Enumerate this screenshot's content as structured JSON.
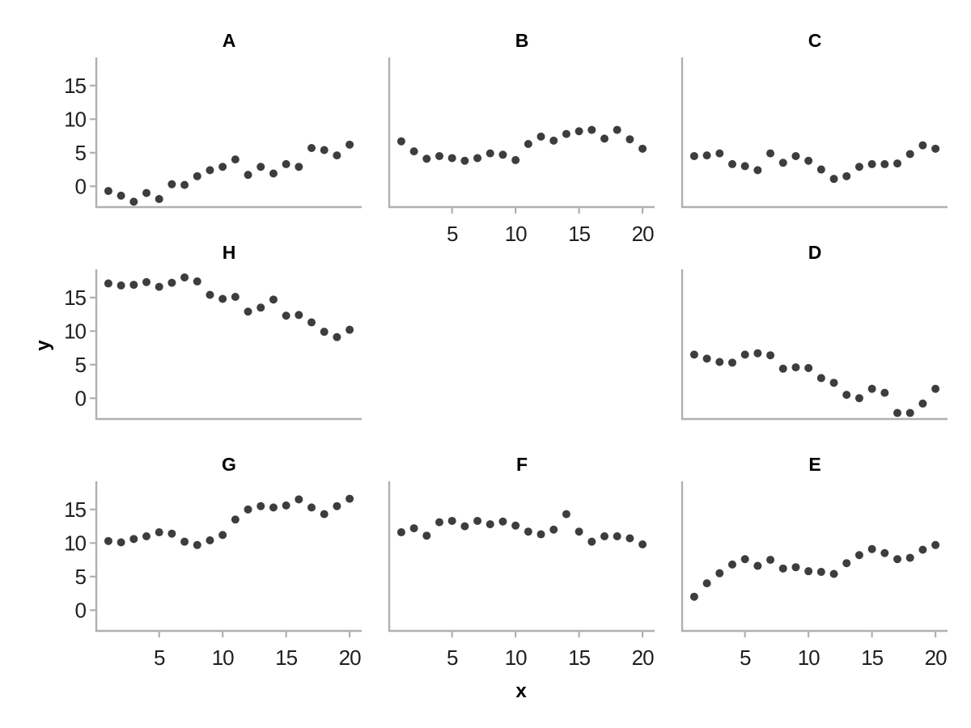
{
  "chart_data": {
    "type": "scatter",
    "title": "",
    "xlabel": "x",
    "ylabel": "y",
    "grid": "off",
    "legend": "none",
    "x_ticks": [
      5,
      10,
      15,
      20
    ],
    "y_ticks": [
      0,
      5,
      10,
      15
    ],
    "x_domain": [
      0.05,
      20.95
    ],
    "y_domain": [
      -3.1,
      19.2
    ],
    "x": [
      1,
      2,
      3,
      4,
      5,
      6,
      7,
      8,
      9,
      10,
      11,
      12,
      13,
      14,
      15,
      16,
      17,
      18,
      19,
      20
    ],
    "facets": [
      {
        "label": "A",
        "row": 0,
        "col": 0,
        "y_axis": true,
        "x_axis": false,
        "values": [
          -0.7,
          -1.4,
          -2.3,
          -1.0,
          -1.9,
          0.3,
          0.2,
          1.5,
          2.4,
          2.9,
          4.0,
          1.7,
          2.9,
          1.9,
          3.3,
          2.9,
          5.7,
          5.4,
          4.6,
          6.2
        ]
      },
      {
        "label": "B",
        "row": 0,
        "col": 1,
        "y_axis": false,
        "x_axis": true,
        "values": [
          6.7,
          5.2,
          4.1,
          4.5,
          4.2,
          3.8,
          4.2,
          4.9,
          4.7,
          3.9,
          6.3,
          7.4,
          6.8,
          7.8,
          8.2,
          8.4,
          7.1,
          8.4,
          7.0,
          5.6
        ]
      },
      {
        "label": "C",
        "row": 0,
        "col": 2,
        "y_axis": false,
        "x_axis": false,
        "values": [
          4.5,
          4.6,
          4.9,
          3.3,
          3.0,
          2.4,
          4.9,
          3.5,
          4.5,
          3.8,
          2.5,
          1.1,
          1.5,
          2.9,
          3.3,
          3.3,
          3.4,
          4.8,
          6.1,
          5.6
        ]
      },
      {
        "label": "H",
        "row": 1,
        "col": 0,
        "y_axis": true,
        "x_axis": false,
        "values": [
          17.1,
          16.8,
          16.9,
          17.3,
          16.6,
          17.2,
          18.0,
          17.4,
          15.4,
          14.8,
          15.1,
          12.9,
          13.5,
          14.7,
          12.3,
          12.4,
          11.3,
          9.9,
          9.1,
          10.2
        ]
      },
      {
        "label": "D",
        "row": 1,
        "col": 2,
        "y_axis": false,
        "x_axis": false,
        "values": [
          6.5,
          5.9,
          5.4,
          5.3,
          6.5,
          6.7,
          6.4,
          4.4,
          4.6,
          4.5,
          3.0,
          2.3,
          0.5,
          0.0,
          1.4,
          0.8,
          -2.2,
          -2.2,
          -0.8,
          1.4
        ]
      },
      {
        "label": "G",
        "row": 2,
        "col": 0,
        "y_axis": true,
        "x_axis": true,
        "values": [
          10.3,
          10.1,
          10.6,
          11.0,
          11.6,
          11.4,
          10.2,
          9.7,
          10.4,
          11.2,
          13.5,
          15.0,
          15.5,
          15.3,
          15.6,
          16.5,
          15.3,
          14.3,
          15.5,
          16.6
        ]
      },
      {
        "label": "F",
        "row": 2,
        "col": 1,
        "y_axis": false,
        "x_axis": true,
        "values": [
          11.6,
          12.2,
          11.1,
          13.1,
          13.3,
          12.5,
          13.3,
          12.8,
          13.2,
          12.6,
          11.7,
          11.3,
          12.0,
          14.3,
          11.7,
          10.2,
          11.0,
          11.0,
          10.7,
          9.8
        ]
      },
      {
        "label": "E",
        "row": 2,
        "col": 2,
        "y_axis": false,
        "x_axis": true,
        "values": [
          2.0,
          4.0,
          5.5,
          6.8,
          7.6,
          6.6,
          7.5,
          6.2,
          6.4,
          5.8,
          5.7,
          5.4,
          7.0,
          8.2,
          9.1,
          8.5,
          7.6,
          7.8,
          9.0,
          9.7
        ]
      }
    ],
    "colors": {
      "point": "#3d3d3d",
      "axis": "#b0b0b0",
      "tick_label": "#1f1f1f",
      "title": "#000000",
      "background": "#ffffff"
    }
  }
}
